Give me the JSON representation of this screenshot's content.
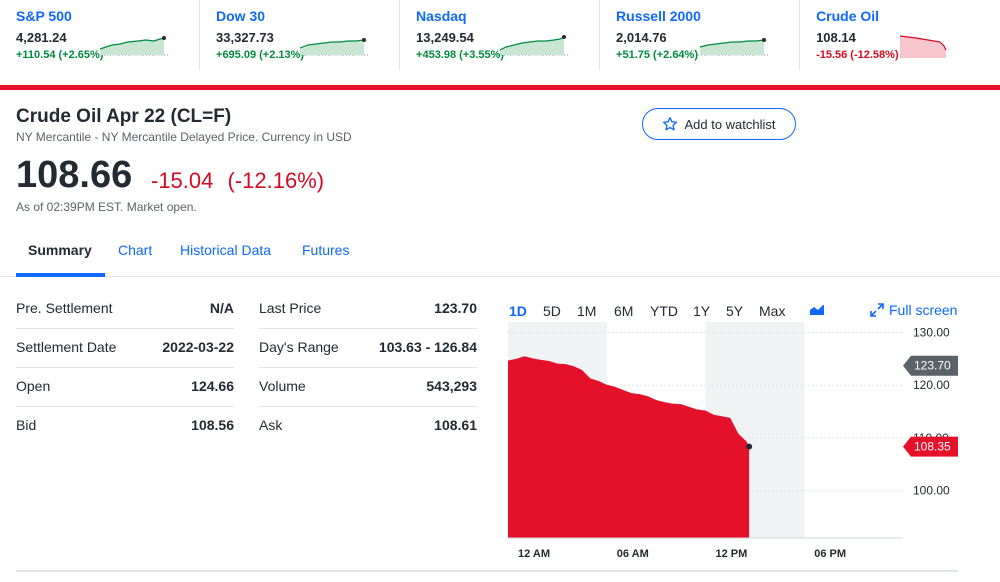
{
  "tickers": [
    {
      "name": "S&P 500",
      "price": "4,281.24",
      "change": "+110.54 (+2.65%)",
      "direction": "up"
    },
    {
      "name": "Dow 30",
      "price": "33,327.73",
      "change": "+695.09 (+2.13%)",
      "direction": "up"
    },
    {
      "name": "Nasdaq",
      "price": "13,249.54",
      "change": "+453.98 (+3.55%)",
      "direction": "up"
    },
    {
      "name": "Russell 2000",
      "price": "2,014.76",
      "change": "+51.75 (+2.64%)",
      "direction": "up"
    },
    {
      "name": "Crude Oil",
      "price": "108.14",
      "change": "-15.56 (-12.58%)",
      "direction": "down"
    }
  ],
  "quote": {
    "title": "Crude Oil Apr 22 (CL=F)",
    "subtitle": "NY Mercantile - NY Mercantile Delayed Price. Currency in USD",
    "watchlist_label": "Add to watchlist",
    "price": "108.66",
    "change": "-15.04",
    "change_pct": "(-12.16%)",
    "as_of": "As of 02:39PM EST. Market open."
  },
  "tabs": [
    {
      "label": "Summary",
      "active": true
    },
    {
      "label": "Chart",
      "active": false
    },
    {
      "label": "Historical Data",
      "active": false
    },
    {
      "label": "Futures",
      "active": false
    }
  ],
  "stats_left": [
    {
      "label": "Pre. Settlement",
      "value": "N/A"
    },
    {
      "label": "Settlement Date",
      "value": "2022-03-22"
    },
    {
      "label": "Open",
      "value": "124.66"
    },
    {
      "label": "Bid",
      "value": "108.56"
    }
  ],
  "stats_right": [
    {
      "label": "Last Price",
      "value": "123.70"
    },
    {
      "label": "Day's Range",
      "value": "103.63 - 126.84"
    },
    {
      "label": "Volume",
      "value": "543,293"
    },
    {
      "label": "Ask",
      "value": "108.61"
    }
  ],
  "chart_controls": {
    "ranges": [
      "1D",
      "5D",
      "1M",
      "6M",
      "YTD",
      "1Y",
      "5Y",
      "Max"
    ],
    "active_range": "1D",
    "fullscreen_label": "Full screen"
  },
  "colors": {
    "up": "#008a3e",
    "down": "#d60a22",
    "link": "#0f69ff",
    "area": "#e5102a"
  },
  "chart_data": {
    "type": "area",
    "x_ticks": [
      "12 AM",
      "06 AM",
      "12 PM",
      "06 PM"
    ],
    "y_ticks": [
      "130.00",
      "120.00",
      "110.00",
      "100.00"
    ],
    "ylim": [
      91,
      132
    ],
    "ref_label": "123.70",
    "ref_value": 123.7,
    "last_label": "108.35",
    "last_value": 108.35,
    "x_hours": [
      0,
      0.5,
      1,
      1.5,
      2,
      2.5,
      3,
      3.5,
      4,
      4.5,
      5,
      5.5,
      6,
      6.5,
      7,
      7.5,
      8,
      8.5,
      9,
      9.5,
      10,
      10.5,
      11,
      11.5,
      12,
      12.5,
      13,
      13.5,
      14,
      14.5,
      14.65
    ],
    "values": [
      124.7,
      125.0,
      125.5,
      125.1,
      124.8,
      124.6,
      124.1,
      124.0,
      123.6,
      122.9,
      121.3,
      120.8,
      120.1,
      119.7,
      119.1,
      118.5,
      118.3,
      117.9,
      117.2,
      116.8,
      116.5,
      116.4,
      115.9,
      115.4,
      115.2,
      114.4,
      114.1,
      113.8,
      110.8,
      109.3,
      108.35
    ]
  }
}
